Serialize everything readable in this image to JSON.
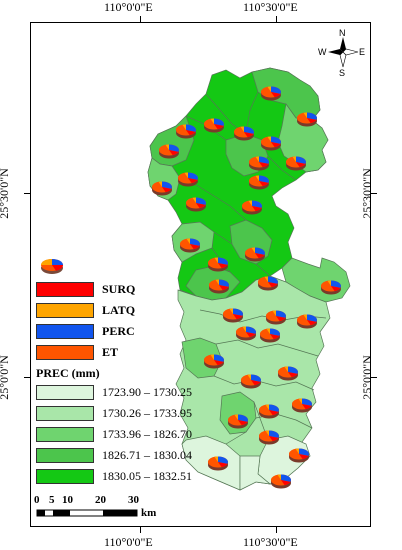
{
  "graticule": {
    "top_labels": [
      "110°0'0\"E",
      "110°30'0\"E"
    ],
    "bottom_labels": [
      "110°0'0\"E",
      "110°30'0\"E"
    ],
    "left_labels": [
      "25°30'0\"N",
      "25°0'0\"N"
    ],
    "right_labels": [
      "25°30'0\"N",
      "25°0'0\"N"
    ]
  },
  "north_arrow": {
    "n": "N",
    "e": "E",
    "s": "S",
    "w": "W"
  },
  "legend": {
    "components": [
      {
        "label": "SURQ",
        "color": "#ff0000"
      },
      {
        "label": "LATQ",
        "color": "#ffa500"
      },
      {
        "label": "PERC",
        "color": "#1155ee"
      },
      {
        "label": "ET",
        "color": "#ff5500"
      }
    ],
    "prec_title": "PREC (mm)",
    "prec_classes": [
      {
        "label": "1723.90 – 1730.25",
        "color": "#ddf5dd"
      },
      {
        "label": "1730.26 – 1733.95",
        "color": "#a9e6a9"
      },
      {
        "label": "1733.96 – 1826.70",
        "color": "#6fd46f"
      },
      {
        "label": "1826.71 – 1830.04",
        "color": "#4cc54c"
      },
      {
        "label": "1830.05 – 1832.51",
        "color": "#14c814"
      }
    ]
  },
  "scale_bar": {
    "ticks": [
      "0",
      "5",
      "10",
      "20",
      "30"
    ],
    "unit": "km"
  },
  "colors": {
    "boundary": "#557755"
  }
}
